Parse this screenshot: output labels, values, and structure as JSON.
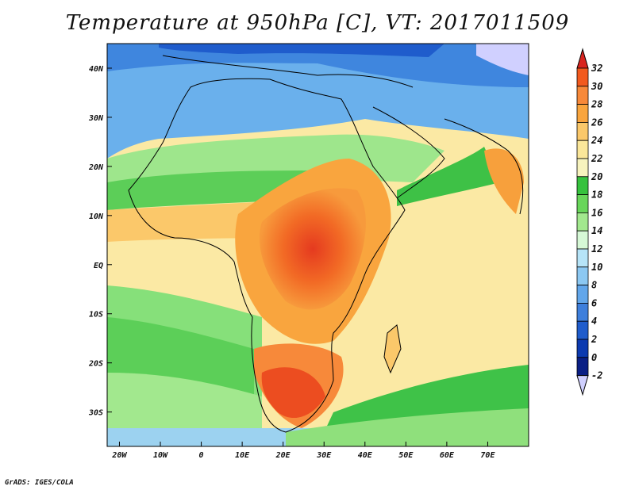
{
  "title": "Temperature at 950hPa [C], VT: 2017011509",
  "credit": "GrADS: IGES/COLA",
  "map": {
    "variable": "Temperature at 950hPa",
    "units": "C",
    "valid_time": "2017011509",
    "lon_range": [
      -23,
      80
    ],
    "lat_range": [
      -37,
      45
    ],
    "lat_labels": [
      "40N",
      "30N",
      "20N",
      "10N",
      "EQ",
      "10S",
      "20S",
      "30S"
    ],
    "lat_values": [
      40,
      30,
      20,
      10,
      0,
      -10,
      -20,
      -30
    ],
    "lon_labels": [
      "20W",
      "10W",
      "0",
      "10E",
      "20E",
      "30E",
      "40E",
      "50E",
      "60E",
      "70E"
    ],
    "lon_values": [
      -20,
      -10,
      0,
      10,
      20,
      30,
      40,
      50,
      60,
      70
    ]
  },
  "colorbar": {
    "labels": [
      "32",
      "30",
      "28",
      "26",
      "24",
      "22",
      "20",
      "18",
      "16",
      "14",
      "12",
      "10",
      "8",
      "6",
      "4",
      "2",
      "0",
      "-2"
    ],
    "colors": [
      "#d8241f",
      "#f25a1e",
      "#f7893a",
      "#f9a53e",
      "#fbc86a",
      "#fbe79a",
      "#f7f3be",
      "#36c23e",
      "#68d65a",
      "#a2e88e",
      "#d6f8d6",
      "#b6e4f8",
      "#8cc8f2",
      "#62a6ea",
      "#3e7fdc",
      "#1f5ccc",
      "#0c3ab0",
      "#0a1f85",
      "#d0d0ff"
    ]
  },
  "colors": {
    "ocean_cool": "#7ec7ef",
    "ocean_mild": "#fbe79a",
    "land_outline": "#000000"
  }
}
